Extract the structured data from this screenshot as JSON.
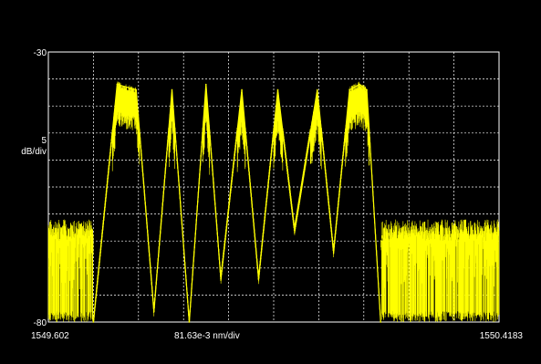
{
  "chart_data": {
    "type": "line",
    "title": "",
    "y_axis": {
      "top_label": "-30",
      "bottom_label": "-80",
      "scale_value": "5",
      "scale_unit": "dB/div",
      "ylim": [
        -80,
        -30
      ],
      "divisions": 10
    },
    "x_axis": {
      "start_label": "1549.602",
      "stop_label": "1550.4183",
      "scale_label": "81.63e-3 nm/div",
      "xlim": [
        1549.602,
        1550.4183
      ],
      "divisions": 10
    },
    "grid": true,
    "series": [
      {
        "color": "#ffff00",
        "noise_floor_db": [
          -80,
          -62
        ],
        "comb": {
          "x": [
            1549.6836,
            1549.7266,
            1549.7611,
            1549.7932,
            1549.8259,
            1549.8572,
            1549.8875,
            1549.9144,
            1549.9524,
            1549.9828,
            1550.0176,
            1550.0479,
            1550.0891,
            1550.1186,
            1550.1475,
            1550.1656,
            1550.1788,
            1550.2039
          ],
          "y": [
            -80,
            -36,
            -37,
            -78,
            -37,
            -80,
            -36,
            -72,
            -37,
            -72,
            -37,
            -63,
            -37,
            -67,
            -37,
            -36,
            -37,
            -80
          ]
        }
      }
    ]
  },
  "colors": {
    "background": "#000000",
    "trace": "#ffff00",
    "grid": "#ffffff",
    "frame": "#ffffff"
  }
}
